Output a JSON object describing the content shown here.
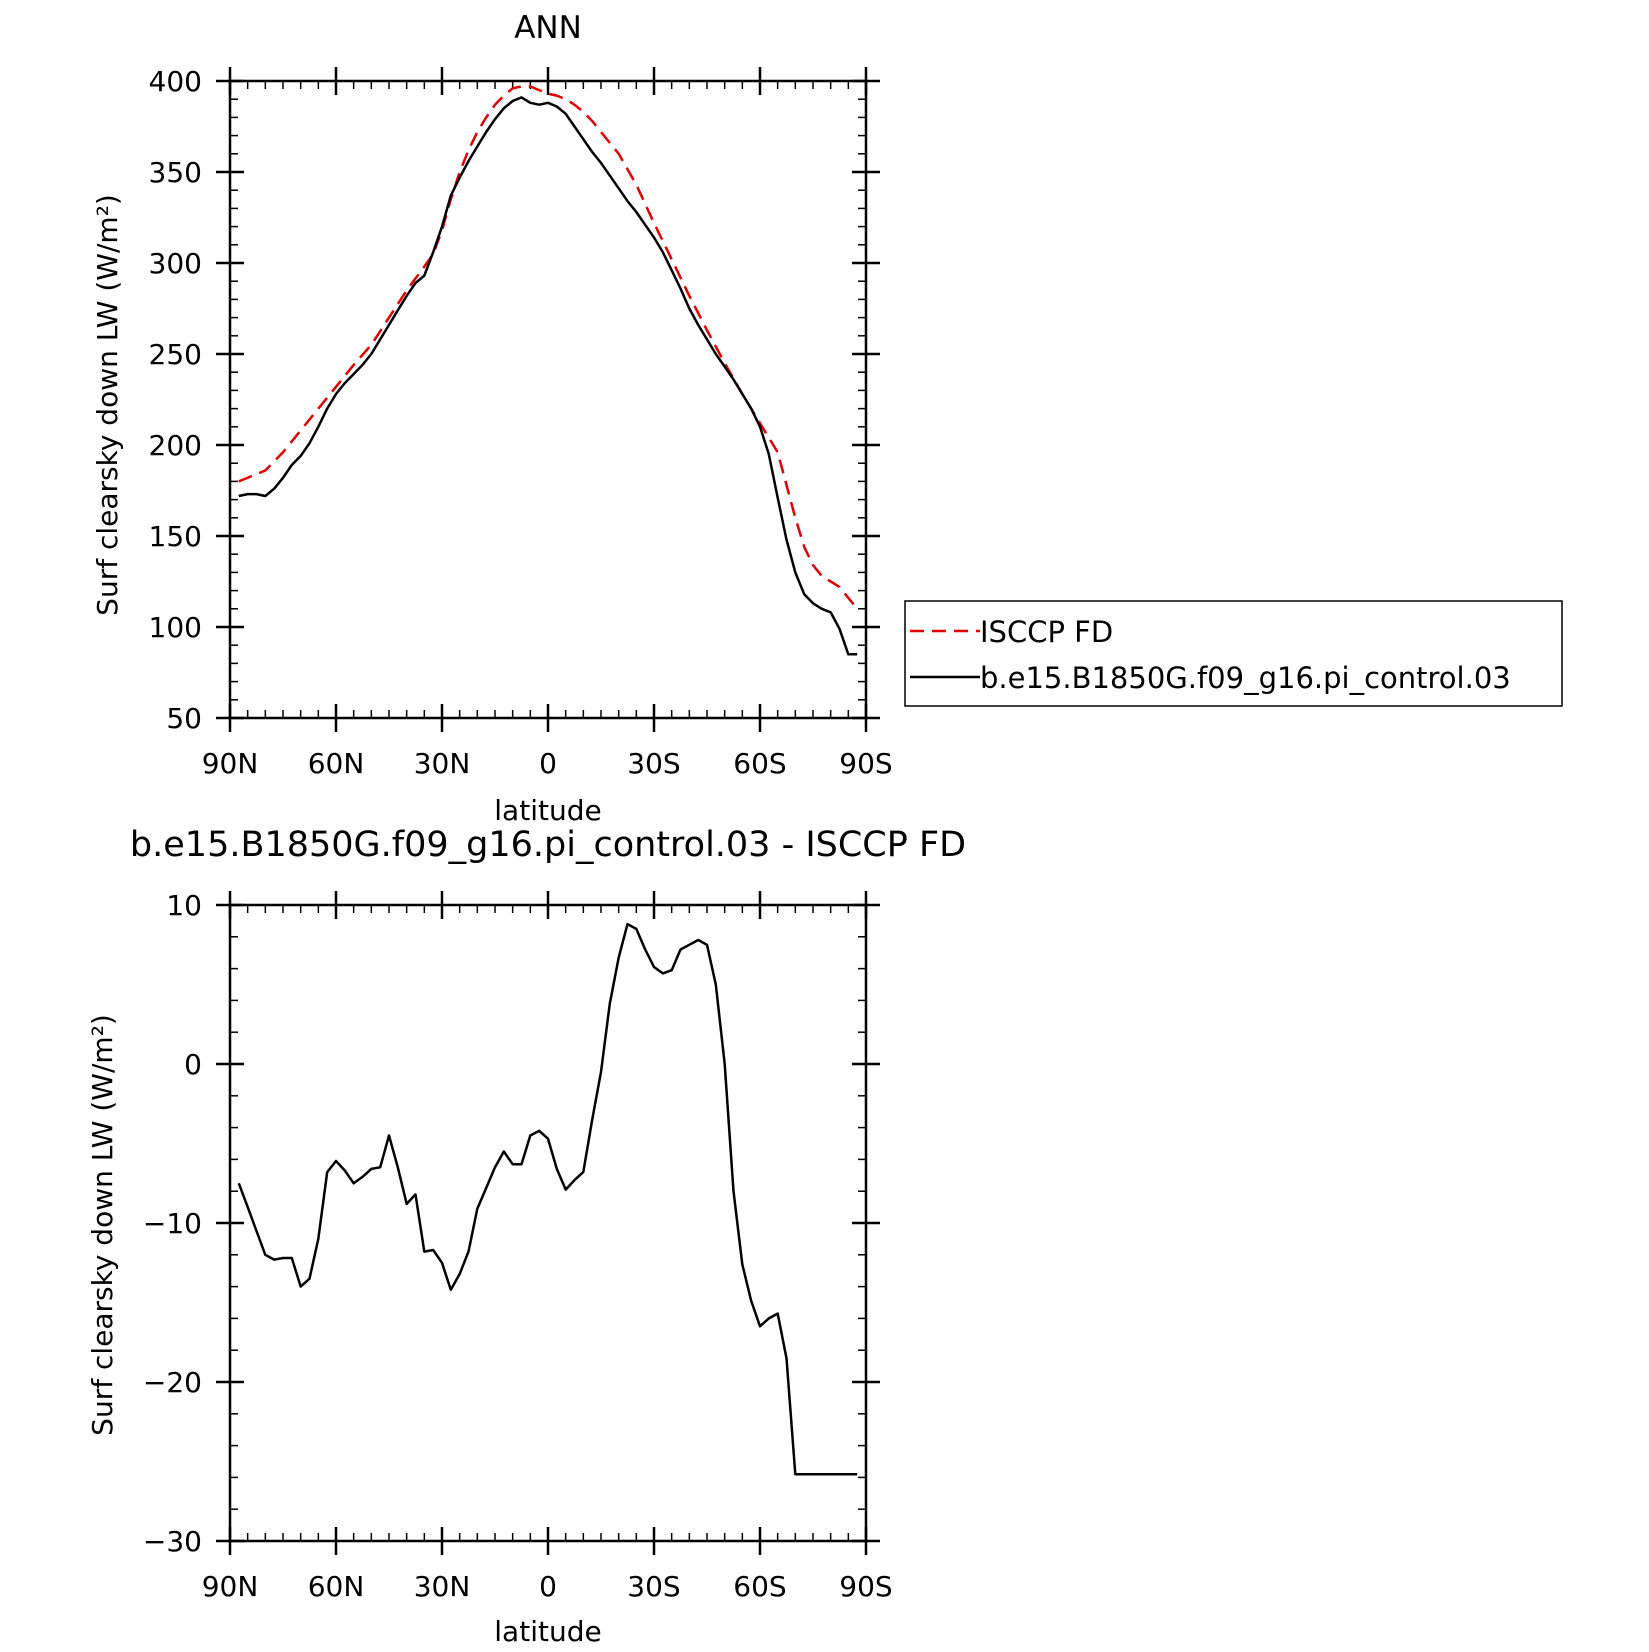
{
  "chart_data": [
    {
      "type": "line",
      "title": "ANN",
      "xlabel": "latitude",
      "ylabel": "Surf clearsky down LW (W/m²)",
      "xlim": [
        90,
        -90
      ],
      "ylim": [
        50,
        400
      ],
      "xticks": [
        {
          "value": 90,
          "label": "90N"
        },
        {
          "value": 60,
          "label": "60N"
        },
        {
          "value": 30,
          "label": "30N"
        },
        {
          "value": 0,
          "label": "0"
        },
        {
          "value": -30,
          "label": "30S"
        },
        {
          "value": -60,
          "label": "60S"
        },
        {
          "value": -90,
          "label": "90S"
        }
      ],
      "yticks": [
        50,
        100,
        150,
        200,
        250,
        300,
        350,
        400
      ],
      "grid": false,
      "legend_position": "right",
      "series": [
        {
          "name": "ISCCP FD",
          "color": "#e00000",
          "dash": "dashed",
          "x": [
            87.5,
            80,
            75,
            70,
            65,
            60,
            55,
            50,
            45,
            40,
            35,
            32.5,
            30,
            27.5,
            25,
            22.5,
            20,
            17.5,
            15,
            12.5,
            10,
            7.5,
            5,
            2.5,
            0,
            -2.5,
            -5,
            -7.5,
            -10,
            -12.5,
            -15,
            -17.5,
            -20,
            -25,
            -30,
            -35,
            -40,
            -45,
            -50,
            -55,
            -60,
            -62.5,
            -65,
            -67.5,
            -70,
            -72.5,
            -75,
            -77.5,
            -80,
            -82.5,
            -85,
            -87.5
          ],
          "y": [
            180,
            186,
            196,
            208,
            220,
            232,
            244,
            255,
            270,
            285,
            298,
            305,
            318,
            335,
            350,
            362,
            372,
            380,
            387,
            392,
            396,
            397,
            397,
            395,
            393,
            392,
            390,
            387,
            383,
            378,
            372,
            366,
            360,
            343,
            322,
            302,
            282,
            263,
            245,
            228,
            212,
            204,
            196,
            178,
            160,
            144,
            134,
            128,
            125,
            122,
            116,
            110
          ]
        },
        {
          "name": "b.e15.B1850G.f09_g16.pi_control.03",
          "color": "#000000",
          "dash": "solid",
          "x": [
            87.5,
            85,
            82.5,
            80,
            77.5,
            75,
            72.5,
            70,
            67.5,
            65,
            62.5,
            60,
            57.5,
            55,
            52.5,
            50,
            47.5,
            45,
            42.5,
            40,
            37.5,
            35,
            32.5,
            30,
            27.5,
            25,
            22.5,
            20,
            17.5,
            15,
            12.5,
            10,
            7.5,
            5,
            2.5,
            0,
            -2.5,
            -5,
            -7.5,
            -10,
            -12.5,
            -15,
            -17.5,
            -20,
            -22.5,
            -25,
            -27.5,
            -30,
            -32.5,
            -35,
            -37.5,
            -40,
            -42.5,
            -45,
            -47.5,
            -50,
            -52.5,
            -55,
            -57.5,
            -60,
            -62.5,
            -65,
            -67.5,
            -70,
            -72.5,
            -75,
            -77.5,
            -80,
            -82.5,
            -85,
            -87.5
          ],
          "y": [
            172,
            173,
            173,
            172,
            176,
            182,
            189,
            194,
            201,
            210,
            220,
            228,
            234,
            239,
            244,
            250,
            258,
            266,
            274,
            282,
            289,
            293,
            306,
            320,
            337,
            347,
            356,
            364,
            372,
            379,
            385,
            389,
            391,
            388,
            387,
            388,
            386,
            382,
            375,
            368,
            361,
            355,
            348,
            341,
            334,
            328,
            321,
            314,
            306,
            296,
            286,
            275,
            266,
            258,
            250,
            243,
            236,
            228,
            220,
            210,
            195,
            171,
            148,
            130,
            118,
            113,
            110,
            108,
            99,
            85,
            85
          ]
        }
      ]
    },
    {
      "type": "line",
      "title": "b.e15.B1850G.f09_g16.pi_control.03 - ISCCP FD",
      "xlabel": "latitude",
      "ylabel": "Surf clearsky down LW (W/m²)",
      "xlim": [
        90,
        -90
      ],
      "ylim": [
        -30,
        10
      ],
      "xticks": [
        {
          "value": 90,
          "label": "90N"
        },
        {
          "value": 60,
          "label": "60N"
        },
        {
          "value": 30,
          "label": "30N"
        },
        {
          "value": 0,
          "label": "0"
        },
        {
          "value": -30,
          "label": "30S"
        },
        {
          "value": -60,
          "label": "60S"
        },
        {
          "value": -90,
          "label": "90S"
        }
      ],
      "yticks": [
        {
          "value": -30,
          "label": "−30"
        },
        {
          "value": -20,
          "label": "−20"
        },
        {
          "value": -10,
          "label": "−10"
        },
        {
          "value": 0,
          "label": "0"
        },
        {
          "value": 10,
          "label": "10"
        }
      ],
      "grid": false,
      "series": [
        {
          "color": "#000000",
          "dash": "solid",
          "x": [
            87.5,
            85,
            82.5,
            80,
            77.5,
            75,
            72.5,
            70,
            67.5,
            65,
            62.5,
            60,
            57.5,
            55,
            52.5,
            50,
            47.5,
            45,
            42.5,
            40,
            37.5,
            35,
            32.5,
            30,
            27.5,
            25,
            22.5,
            20,
            17.5,
            15,
            12.5,
            10,
            7.5,
            5,
            2.5,
            0,
            -2.5,
            -5,
            -7.5,
            -10,
            -12.5,
            -15,
            -17.5,
            -20,
            -22.5,
            -25,
            -27.5,
            -30,
            -32.5,
            -35,
            -37.5,
            -40,
            -42.5,
            -45,
            -47.5,
            -50,
            -52.5,
            -55,
            -57.5,
            -60,
            -62.5,
            -65,
            -67.5,
            -70,
            -72.5,
            -75,
            -77.5,
            -80,
            -82.5,
            -85,
            -87.5
          ],
          "y": [
            -7.5,
            -9,
            -10.5,
            -12,
            -12.3,
            -12.2,
            -12.2,
            -14,
            -13.5,
            -11,
            -6.8,
            -6.1,
            -6.7,
            -7.5,
            -7.1,
            -6.6,
            -6.5,
            -4.5,
            -6.5,
            -8.8,
            -8.2,
            -11.8,
            -11.7,
            -12.5,
            -14.2,
            -13.2,
            -11.8,
            -9.1,
            -7.8,
            -6.5,
            -5.5,
            -6.3,
            -6.3,
            -4.5,
            -4.2,
            -4.7,
            -6.6,
            -7.9,
            -7.3,
            -6.8,
            -3.5,
            -0.5,
            3.8,
            6.7,
            8.8,
            8.5,
            7.2,
            6.1,
            5.7,
            5.9,
            7.2,
            7.5,
            7.8,
            7.5,
            5,
            0,
            -8,
            -12.6,
            -14.9,
            -16.5,
            -16,
            -15.7,
            -18.5,
            -25.8,
            -25.8,
            -25.8,
            -25.8,
            -25.8,
            -25.8,
            -25.8,
            -25.8
          ]
        }
      ]
    }
  ]
}
